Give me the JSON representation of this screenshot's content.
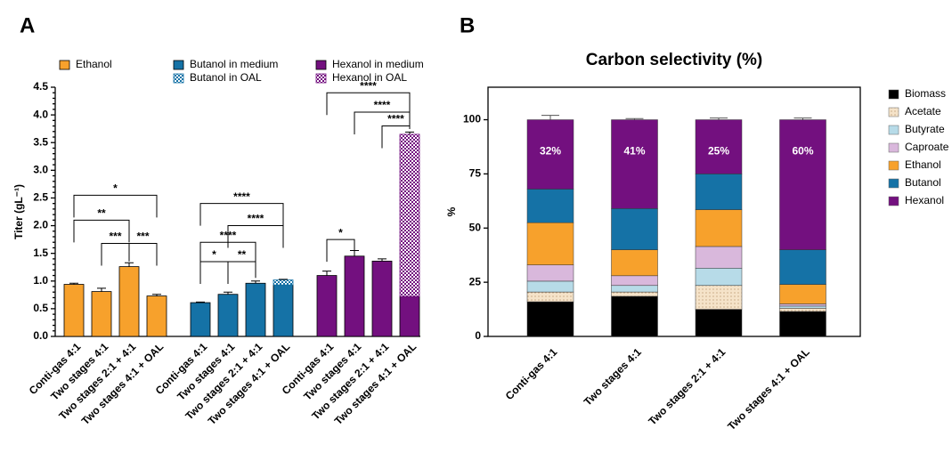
{
  "chart_data": [
    {
      "type": "bar",
      "panel": "A",
      "ylabel": "Titer (gL⁻¹)",
      "categories": [
        "Conti-gas 4:1",
        "Two stages 4:1",
        "Two stages 2:1 + 4:1",
        "Two stages 4:1 + OAL"
      ],
      "ylim": [
        0,
        4.5
      ],
      "yticks": [
        {
          "value": 0,
          "label": "0.0"
        },
        0.5,
        {
          "value": 1,
          "label": "1.0"
        },
        1.5,
        {
          "value": 2,
          "label": "2.0"
        },
        2.5,
        {
          "value": 3,
          "label": "3.0"
        },
        3.5,
        {
          "value": 4,
          "label": "4.0"
        },
        4.5
      ],
      "series": [
        {
          "name": "Ethanol",
          "color": "#f7a12c",
          "values": [
            0.94,
            0.81,
            1.26,
            0.73
          ],
          "errors": [
            0.02,
            0.06,
            0.07,
            0.03
          ]
        },
        {
          "name": "Butanol in medium",
          "color": "#1572a6",
          "values": [
            0.61,
            0.76,
            0.96,
            0.93
          ],
          "errors": [
            0.01,
            0.04,
            0.04,
            null
          ]
        },
        {
          "name": "Butanol in OAL",
          "color": "#1572a6",
          "pattern": "checker",
          "stacked": true,
          "values": [
            null,
            null,
            null,
            0.09
          ],
          "errors": [
            null,
            null,
            null,
            0.01
          ]
        },
        {
          "name": "Hexanol in medium",
          "color": "#73107f",
          "values": [
            1.1,
            1.45,
            1.36,
            0.72
          ],
          "errors": [
            0.08,
            0.1,
            0.04,
            null
          ]
        },
        {
          "name": "Hexanol in OAL",
          "color": "#73107f",
          "pattern": "checker",
          "stacked": true,
          "values": [
            null,
            null,
            null,
            2.93
          ],
          "errors": [
            null,
            null,
            null,
            0.04
          ]
        }
      ],
      "significance": [
        "*",
        "**",
        "***",
        "***",
        "****",
        "****",
        "****",
        "*",
        "**",
        "*",
        "****",
        "****",
        "****"
      ]
    },
    {
      "type": "stacked_bar",
      "panel": "B",
      "title": "Carbon selectivity (%)",
      "ylabel": "%",
      "categories": [
        "Conti-gas 4:1",
        "Two stages 4:1",
        "Two stages 2:1 + 4:1",
        "Two stages 4:1 + OAL"
      ],
      "ylim": [
        0,
        115
      ],
      "yticks": [
        0,
        25,
        50,
        75,
        100
      ],
      "series": [
        {
          "name": "Biomass",
          "color": "#000000",
          "values": [
            16,
            18.5,
            12.5,
            11.5
          ]
        },
        {
          "name": "Acetate",
          "color": "#f5e3c9",
          "pattern": "dots",
          "values": [
            4.5,
            2,
            11,
            1.5
          ]
        },
        {
          "name": "Butyrate",
          "color": "#b7dbe8",
          "values": [
            5,
            3,
            8,
            1
          ]
        },
        {
          "name": "Caproate",
          "color": "#d9b8dc",
          "values": [
            7.5,
            4.5,
            10,
            1
          ]
        },
        {
          "name": "Ethanol",
          "color": "#f7a12c",
          "values": [
            19.5,
            12,
            17,
            9
          ]
        },
        {
          "name": "Butanol",
          "color": "#1572a6",
          "values": [
            15.5,
            19,
            16.5,
            16
          ]
        },
        {
          "name": "Hexanol",
          "color": "#73107f",
          "values": [
            32,
            41,
            25,
            60
          ],
          "value_labels": [
            "32%",
            "41%",
            "25%",
            "60%"
          ],
          "errors": [
            2,
            0.5,
            0.8,
            0.8
          ]
        }
      ]
    }
  ]
}
